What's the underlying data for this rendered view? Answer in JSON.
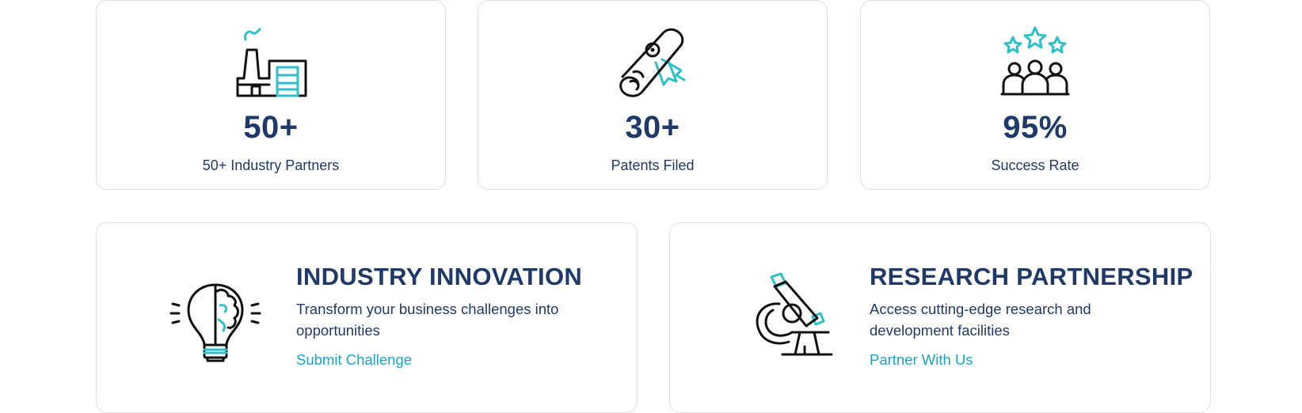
{
  "stats": [
    {
      "value": "50+",
      "label": "50+ Industry Partners",
      "icon": "factory-icon"
    },
    {
      "value": "30+",
      "label": "Patents Filed",
      "icon": "diploma-scroll-icon"
    },
    {
      "value": "95%",
      "label": "Success Rate",
      "icon": "team-stars-icon"
    }
  ],
  "features": [
    {
      "title": "INDUSTRY INNOVATION",
      "description": "Transform your business challenges into opportunities",
      "link": "Submit Challenge",
      "icon": "brain-lightbulb-icon"
    },
    {
      "title": "RESEARCH PARTNERSHIP",
      "description": "Access cutting-edge research and development facilities",
      "link": "Partner With Us",
      "icon": "microscope-icon"
    }
  ],
  "colors": {
    "heading": "#1f3a68",
    "link": "#17a5cf",
    "accent": "#2cc1c9",
    "border": "#dcdfe4"
  }
}
